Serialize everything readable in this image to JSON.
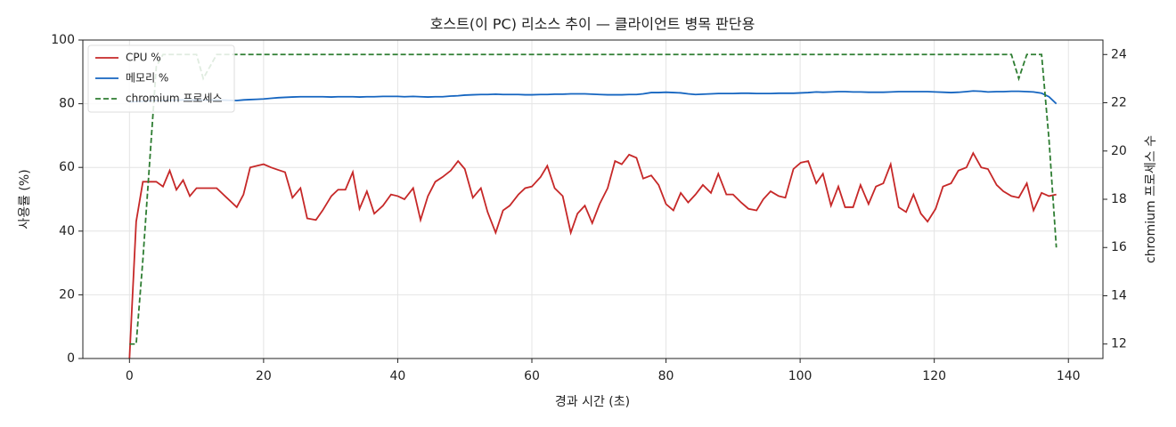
{
  "chart_data": {
    "type": "line",
    "title": "호스트(이 PC) 리소스 추이 — 클라이언트 병목 판단용",
    "x_label": "경과 시간 (초)",
    "y_label": "사용률 (%)",
    "y2_label": "chromium 프로세스 수",
    "x": [
      0,
      1,
      2,
      3,
      4,
      5,
      6,
      7,
      8,
      9,
      10,
      11,
      13,
      16,
      17,
      18,
      19,
      20,
      21.1,
      22.2,
      23.2,
      24.3,
      25.5,
      26.5,
      27.8,
      28.8,
      30.1,
      31.1,
      32.2,
      33.3,
      34.3,
      35.4,
      36.5,
      37.8,
      39,
      40,
      41,
      42.3,
      43.4,
      44.5,
      45.6,
      46.7,
      47.9,
      49,
      50,
      51.2,
      52.4,
      53.4,
      54.6,
      55.7,
      56.7,
      58,
      59,
      60,
      61.3,
      62.3,
      63.4,
      64.6,
      65.8,
      66.8,
      67.9,
      69,
      70.1,
      71.3,
      72.4,
      73.4,
      74.5,
      75.6,
      76.6,
      77.8,
      78.9,
      80,
      81.1,
      82.2,
      83.3,
      84.4,
      85.5,
      86.7,
      87.8,
      89,
      90,
      91.2,
      92.3,
      93.5,
      94.5,
      95.6,
      96.8,
      97.8,
      99,
      100.1,
      101.2,
      102.4,
      103.4,
      104.6,
      105.7,
      106.7,
      107.9,
      109,
      110.2,
      111.3,
      112.4,
      113.5,
      114.7,
      115.8,
      116.9,
      118,
      119,
      120.2,
      121.3,
      122.5,
      123.6,
      124.8,
      125.8,
      127,
      128,
      129.3,
      130.3,
      131.5,
      132.6,
      133.8,
      134.8,
      136,
      137.1,
      138.2
    ],
    "series": [
      {
        "name": "CPU %",
        "color": "#c62828",
        "dash": false,
        "values": [
          0,
          43,
          55.5,
          55.5,
          55.5,
          54,
          59,
          53,
          56,
          51,
          53.5,
          53.5,
          53.5,
          47.5,
          51.5,
          60,
          60.5,
          61,
          60,
          59.2,
          58.5,
          50.5,
          53.5,
          44,
          43.5,
          46.5,
          51,
          53,
          53,
          58.5,
          47,
          52.5,
          45.5,
          48,
          51.5,
          51,
          50,
          53.5,
          43.5,
          51,
          55.5,
          57,
          59,
          62,
          59.5,
          50.5,
          53.5,
          46,
          39.5,
          46.5,
          48,
          51.5,
          53.5,
          54,
          57,
          60.5,
          53.5,
          51,
          39.5,
          45.5,
          48,
          42.5,
          48.5,
          53.5,
          62,
          61,
          64,
          63,
          56.5,
          57.5,
          54.5,
          48.5,
          46.5,
          52,
          49,
          51.5,
          54.5,
          52,
          58,
          51.5,
          51.5,
          49,
          47,
          46.5,
          50,
          52.5,
          51,
          50.5,
          59.5,
          61.5,
          62,
          55,
          58,
          48,
          54,
          47.5,
          47.5,
          54.5,
          48.5,
          54,
          55,
          61,
          47.5,
          46,
          51.5,
          45.5,
          43,
          47,
          54,
          55,
          59,
          60,
          64.5,
          60,
          59.5,
          54.5,
          52.5,
          51,
          50.5,
          55,
          46.5,
          52,
          51,
          51.5
        ]
      },
      {
        "name": "메모리 %",
        "color": "#1565c0",
        "dash": false,
        "values": [
          80.6,
          80.7,
          80.8,
          80.9,
          81,
          81,
          81.1,
          81.1,
          81.2,
          81.2,
          81.2,
          81.1,
          81.2,
          81,
          81.2,
          81.3,
          81.4,
          81.5,
          81.7,
          81.9,
          82,
          82.1,
          82.2,
          82.2,
          82.2,
          82.2,
          82.1,
          82.2,
          82.2,
          82.2,
          82.1,
          82.2,
          82.2,
          82.3,
          82.3,
          82.3,
          82.2,
          82.3,
          82.2,
          82.1,
          82.2,
          82.2,
          82.4,
          82.5,
          82.7,
          82.8,
          82.9,
          82.9,
          83,
          82.9,
          82.9,
          82.9,
          82.8,
          82.8,
          82.9,
          82.9,
          83,
          83,
          83.1,
          83.1,
          83.1,
          83,
          82.9,
          82.8,
          82.8,
          82.8,
          82.9,
          82.9,
          83.1,
          83.5,
          83.5,
          83.6,
          83.5,
          83.4,
          83.1,
          82.9,
          83,
          83.1,
          83.2,
          83.2,
          83.2,
          83.3,
          83.3,
          83.2,
          83.2,
          83.2,
          83.3,
          83.3,
          83.3,
          83.4,
          83.5,
          83.7,
          83.6,
          83.7,
          83.8,
          83.8,
          83.7,
          83.7,
          83.6,
          83.6,
          83.6,
          83.7,
          83.8,
          83.8,
          83.8,
          83.8,
          83.8,
          83.7,
          83.6,
          83.5,
          83.6,
          83.8,
          84,
          83.9,
          83.7,
          83.8,
          83.8,
          83.9,
          83.9,
          83.8,
          83.7,
          83.3,
          82.2,
          80
        ]
      },
      {
        "name": "chromium 프로세스",
        "color": "#2e7d32",
        "dash": true,
        "axis": "y2",
        "values": [
          12,
          12,
          15.5,
          19.5,
          23.5,
          24,
          24,
          24,
          24,
          24,
          24,
          23,
          24,
          24,
          24,
          24,
          24,
          24,
          24,
          24,
          24,
          24,
          24,
          24,
          24,
          24,
          24,
          24,
          24,
          24,
          24,
          24,
          24,
          24,
          24,
          24,
          24,
          24,
          24,
          24,
          24,
          24,
          24,
          24,
          24,
          24,
          24,
          24,
          24,
          24,
          24,
          24,
          24,
          24,
          24,
          24,
          24,
          24,
          24,
          24,
          24,
          24,
          24,
          24,
          24,
          24,
          24,
          24,
          24,
          24,
          24,
          24,
          24,
          24,
          24,
          24,
          24,
          24,
          24,
          24,
          24,
          24,
          24,
          24,
          24,
          24,
          24,
          24,
          24,
          24,
          24,
          24,
          24,
          24,
          24,
          24,
          24,
          24,
          24,
          24,
          24,
          24,
          24,
          24,
          24,
          24,
          24,
          24,
          24,
          24,
          24,
          24,
          24,
          24,
          24,
          24,
          24,
          24,
          23,
          24,
          24,
          24,
          20.5,
          16
        ]
      }
    ],
    "xlim": [
      -6.95,
      145.15
    ],
    "xticks": [
      0,
      20,
      40,
      60,
      80,
      100,
      120,
      140
    ],
    "ylim": [
      0,
      100
    ],
    "yticks": [
      0,
      20,
      40,
      60,
      80,
      100
    ],
    "y2lim": [
      11.4,
      24.6
    ],
    "y2ticks": [
      12,
      14,
      16,
      18,
      20,
      22,
      24
    ],
    "grid": true,
    "legend": "upper left"
  }
}
